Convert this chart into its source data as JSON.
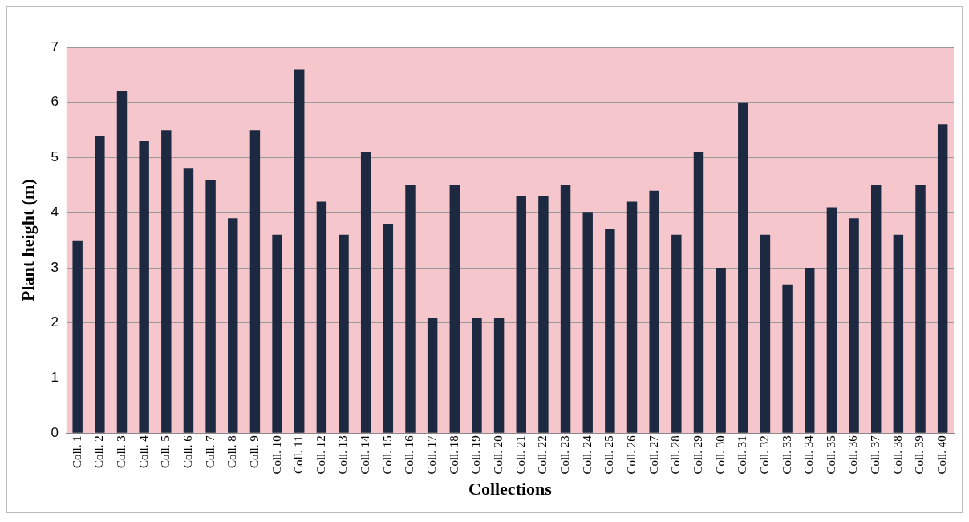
{
  "chart_data": {
    "type": "bar",
    "xlabel": "Collections",
    "ylabel": "Plant height (m)",
    "categories": [
      "Coll. 1",
      "Coll. 2",
      "Coll. 3",
      "Coll. 4",
      "Coll. 5",
      "Coll. 6",
      "Coll. 7",
      "Coll. 8",
      "Coll. 9",
      "Coll. 10",
      "Coll. 11",
      "Coll. 12",
      "Coll. 13",
      "Coll. 14",
      "Coll. 15",
      "Coll. 16",
      "Coll. 17",
      "Coll. 18",
      "Coll. 19",
      "Coll. 20",
      "Coll. 21",
      "Coll. 22",
      "Coll. 23",
      "Coll. 24",
      "Coll. 25",
      "Coll. 26",
      "Coll. 27",
      "Coll. 28",
      "Coll. 29",
      "Coll. 30",
      "Coll. 31",
      "Coll. 32",
      "Coll. 33",
      "Coll. 34",
      "Coll. 35",
      "Coll. 36",
      "Coll. 37",
      "Coll. 38",
      "Coll. 39",
      "Coll. 40"
    ],
    "values": [
      3.5,
      5.4,
      6.2,
      5.3,
      5.5,
      4.8,
      4.6,
      3.9,
      5.5,
      3.6,
      6.6,
      4.2,
      3.6,
      5.1,
      3.8,
      4.5,
      2.1,
      4.5,
      2.1,
      2.1,
      4.3,
      4.3,
      4.5,
      4.0,
      3.7,
      4.2,
      4.4,
      3.6,
      5.1,
      3.0,
      6.0,
      3.6,
      2.7,
      3.0,
      4.1,
      3.9,
      4.5,
      3.6,
      4.5,
      5.6
    ],
    "color": "#1c2940",
    "ylim": [
      0,
      7
    ],
    "yticks": [
      0,
      1,
      2,
      3,
      4,
      5,
      6,
      7
    ],
    "grid": "y"
  }
}
